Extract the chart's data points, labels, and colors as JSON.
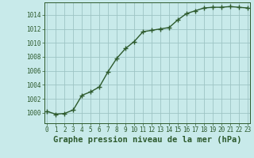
{
  "x": [
    0,
    1,
    2,
    3,
    4,
    5,
    6,
    7,
    8,
    9,
    10,
    11,
    12,
    13,
    14,
    15,
    16,
    17,
    18,
    19,
    20,
    21,
    22,
    23
  ],
  "y": [
    1000.2,
    999.8,
    999.9,
    1000.4,
    1002.5,
    1003.0,
    1003.7,
    1005.9,
    1007.8,
    1009.2,
    1010.2,
    1011.6,
    1011.8,
    1012.0,
    1012.2,
    1013.3,
    1014.2,
    1014.6,
    1015.0,
    1015.1,
    1015.1,
    1015.2,
    1015.1,
    1015.0
  ],
  "ylim": [
    998.5,
    1015.8
  ],
  "xlim": [
    -0.3,
    23.3
  ],
  "yticks": [
    1000,
    1002,
    1004,
    1006,
    1008,
    1010,
    1012,
    1014
  ],
  "xticks": [
    0,
    1,
    2,
    3,
    4,
    5,
    6,
    7,
    8,
    9,
    10,
    11,
    12,
    13,
    14,
    15,
    16,
    17,
    18,
    19,
    20,
    21,
    22,
    23
  ],
  "line_color": "#2d5a2d",
  "marker": "+",
  "marker_size": 4,
  "marker_edge_width": 1.0,
  "line_width": 1.0,
  "background_color": "#c8eaea",
  "grid_color": "#9ec4c4",
  "xlabel": "Graphe pression niveau de la mer (hPa)",
  "xlabel_color": "#2d5a2d",
  "tick_color": "#2d5a2d",
  "tick_fontsize": 5.5,
  "xlabel_fontsize": 7.5
}
